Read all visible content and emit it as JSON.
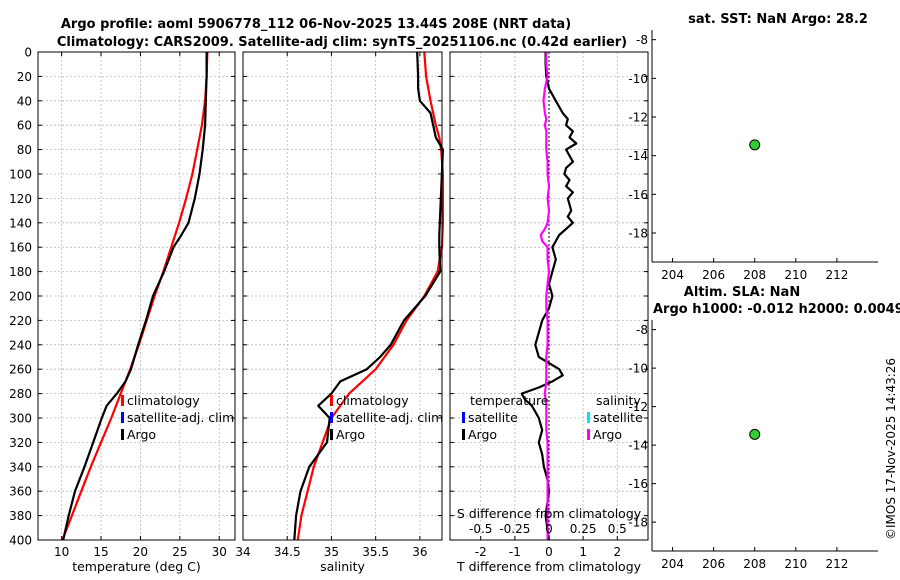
{
  "title_line1": "Argo profile: aoml 5906778_112 06-Nov-2025 13.44S 208E (NRT data)",
  "title_line2": "Climatology: CARS2009. Satellite-adj clim: synTS_20251106.nc (0.42d earlier)",
  "timestamp": "©IMOS 17-Nov-2025 14:43:26",
  "chart_data": [
    {
      "id": "temperature",
      "type": "line",
      "xlabel": "temperature (deg C)",
      "ylabel": "",
      "xlim": [
        7,
        32
      ],
      "ylim": [
        400,
        0
      ],
      "xticks": [
        10,
        15,
        20,
        25,
        30
      ],
      "xticklabels": [
        "10",
        "15",
        "20",
        "25",
        "30"
      ],
      "yticks": [
        0,
        20,
        40,
        60,
        80,
        100,
        120,
        140,
        160,
        180,
        200,
        220,
        240,
        260,
        280,
        300,
        320,
        340,
        360,
        380,
        400
      ],
      "legend": {
        "location": "lower-right",
        "entries": [
          {
            "label": "climatology",
            "color": "#ff0000"
          },
          {
            "label": "satellite-adj. clim",
            "color": "#0000ff"
          },
          {
            "label": "Argo",
            "color": "#000000"
          }
        ]
      },
      "series": [
        {
          "name": "climatology",
          "color": "#ff0000",
          "width": 2.2,
          "depth": [
            0,
            20,
            40,
            60,
            80,
            100,
            120,
            140,
            160,
            180,
            200,
            220,
            240,
            260,
            280,
            300,
            320,
            340,
            360,
            380,
            400
          ],
          "values": [
            28.5,
            28.4,
            28.2,
            27.8,
            27.2,
            26.6,
            25.8,
            24.9,
            23.9,
            22.9,
            21.8,
            20.8,
            19.8,
            18.7,
            17.5,
            16.3,
            15.0,
            13.7,
            12.5,
            11.3,
            10.1
          ]
        },
        {
          "name": "Argo",
          "color": "#000000",
          "width": 2.2,
          "depth": [
            0,
            20,
            40,
            60,
            80,
            100,
            120,
            140,
            150,
            160,
            180,
            200,
            220,
            240,
            260,
            270,
            280,
            290,
            300,
            320,
            340,
            360,
            380,
            400
          ],
          "values": [
            28.4,
            28.4,
            28.3,
            28.2,
            27.9,
            27.5,
            26.9,
            26.1,
            25.2,
            24.2,
            23.0,
            21.6,
            20.7,
            19.7,
            18.8,
            18.1,
            17.0,
            15.7,
            15.1,
            14.0,
            12.9,
            11.7,
            10.9,
            10.2
          ]
        }
      ]
    },
    {
      "id": "salinity",
      "type": "line",
      "xlabel": "salinity",
      "xlim": [
        34,
        36.25
      ],
      "ylim": [
        400,
        0
      ],
      "xticks": [
        34,
        34.5,
        35,
        35.5,
        36
      ],
      "xticklabels": [
        "34",
        "34.5",
        "35",
        "35.5",
        "36"
      ],
      "legend": {
        "location": "lower-right",
        "entries": [
          {
            "label": "climatology",
            "color": "#ff0000"
          },
          {
            "label": "satellite-adj. clim",
            "color": "#0000ff"
          },
          {
            "label": "Argo",
            "color": "#000000"
          }
        ]
      },
      "series": [
        {
          "name": "climatology",
          "color": "#ff0000",
          "width": 2.2,
          "depth": [
            0,
            20,
            40,
            60,
            70,
            80,
            100,
            120,
            140,
            160,
            180,
            200,
            220,
            240,
            260,
            280,
            300,
            320,
            340,
            360,
            380,
            400
          ],
          "values": [
            36.05,
            36.07,
            36.12,
            36.18,
            36.22,
            36.24,
            36.26,
            36.26,
            36.26,
            36.25,
            36.2,
            36.05,
            35.85,
            35.7,
            35.5,
            35.2,
            35.0,
            34.9,
            34.8,
            34.73,
            34.66,
            34.62
          ]
        },
        {
          "name": "Argo",
          "color": "#000000",
          "width": 2.2,
          "depth": [
            0,
            20,
            30,
            40,
            50,
            60,
            70,
            80,
            150,
            160,
            180,
            200,
            220,
            240,
            250,
            260,
            270,
            280,
            290,
            300,
            320,
            340,
            360,
            380,
            400
          ],
          "values": [
            35.97,
            35.98,
            35.98,
            36.0,
            36.12,
            36.15,
            36.18,
            36.26,
            36.22,
            36.22,
            36.23,
            36.06,
            35.82,
            35.67,
            35.55,
            35.4,
            35.1,
            35.0,
            34.85,
            34.98,
            34.95,
            34.75,
            34.65,
            34.6,
            34.58
          ]
        }
      ]
    },
    {
      "id": "differences",
      "type": "line",
      "xlabel": "T difference from climatology",
      "top_axis_label": "S difference from climatology",
      "xlim": [
        -2.9,
        2.9
      ],
      "top_xlim": [
        -0.725,
        0.725
      ],
      "ylim": [
        400,
        0
      ],
      "xticks": [
        -2,
        -1,
        0,
        1,
        2
      ],
      "xticklabels": [
        "-2",
        "-1",
        "0",
        "1",
        "2"
      ],
      "top_xticks": [
        -0.5,
        -0.25,
        0,
        0.25,
        0.5
      ],
      "top_xticklabels": [
        "-0.5",
        "-0.25",
        "0",
        "0.25",
        "0.5"
      ],
      "zero_line": true,
      "legend_temperature": {
        "title": "temperature",
        "entries": [
          {
            "label": "satellite",
            "color": "#0000ff"
          },
          {
            "label": "Argo",
            "color": "#000000"
          }
        ]
      },
      "legend_salinity": {
        "title": "salinity",
        "entries": [
          {
            "label": "satellite",
            "color": "#00e5ff"
          },
          {
            "label": "Argo",
            "color": "#ff00ff"
          }
        ]
      },
      "series": [
        {
          "name": "T difference (Argo)",
          "color": "#000000",
          "width": 2.2,
          "depth": [
            0,
            10,
            20,
            30,
            40,
            50,
            55,
            60,
            65,
            70,
            75,
            80,
            85,
            90,
            95,
            100,
            105,
            110,
            115,
            120,
            125,
            130,
            135,
            140,
            145,
            150,
            160,
            170,
            180,
            190,
            200,
            210,
            220,
            230,
            240,
            250,
            255,
            260,
            265,
            270,
            275,
            280,
            285,
            290,
            300,
            310,
            320,
            330,
            340,
            350,
            360,
            370,
            380,
            390,
            400
          ],
          "values": [
            -0.1,
            -0.1,
            -0.08,
            0.0,
            0.2,
            0.4,
            0.55,
            0.5,
            0.7,
            0.6,
            0.8,
            0.5,
            0.6,
            0.7,
            0.5,
            0.45,
            0.6,
            0.5,
            0.7,
            0.55,
            0.6,
            0.65,
            0.55,
            0.7,
            0.5,
            0.3,
            0.1,
            0.2,
            0.1,
            0.0,
            0.1,
            0.0,
            -0.2,
            -0.3,
            -0.4,
            -0.3,
            0.0,
            0.3,
            0.4,
            0.1,
            -0.3,
            -0.8,
            -0.7,
            -0.5,
            -0.3,
            -0.2,
            -0.3,
            -0.2,
            -0.15,
            -0.05,
            0.0,
            -0.05,
            -0.1,
            -0.05,
            0.0
          ]
        },
        {
          "name": "S difference (Argo)",
          "color": "#ff00ff",
          "width": 2.2,
          "axis": "top",
          "depth": [
            0,
            10,
            20,
            30,
            40,
            50,
            55,
            60,
            65,
            70,
            80,
            90,
            100,
            110,
            120,
            130,
            140,
            145,
            150,
            155,
            160,
            170,
            180,
            190,
            200,
            210,
            220,
            230,
            240,
            250,
            260,
            270,
            280,
            290,
            300,
            310,
            320,
            330,
            340,
            350,
            360,
            370,
            380,
            390,
            400
          ],
          "values": [
            -0.02,
            -0.02,
            -0.01,
            -0.03,
            -0.04,
            -0.03,
            -0.02,
            -0.03,
            -0.02,
            -0.02,
            -0.02,
            -0.01,
            -0.01,
            0.0,
            -0.01,
            0.0,
            -0.01,
            -0.03,
            -0.06,
            -0.05,
            -0.01,
            -0.01,
            0.0,
            -0.01,
            -0.02,
            -0.02,
            -0.01,
            -0.01,
            -0.01,
            -0.02,
            -0.02,
            -0.02,
            -0.03,
            -0.02,
            -0.02,
            -0.02,
            -0.01,
            -0.01,
            -0.01,
            -0.01,
            -0.01,
            -0.01,
            -0.01,
            -0.01,
            -0.01
          ]
        }
      ]
    },
    {
      "id": "sst-panel",
      "type": "scatter",
      "title": "sat. SST: NaN Argo: 28.2",
      "xlim": [
        203,
        214
      ],
      "ylim": [
        -19.5,
        -7.5
      ],
      "xticks": [
        204,
        206,
        208,
        210,
        212
      ],
      "xticklabels": [
        "204",
        "206",
        "208",
        "210",
        "212"
      ],
      "yticks": [
        -8,
        -10,
        -12,
        -14,
        -16,
        -18
      ],
      "yticklabels": [
        "-8",
        "-10",
        "-12",
        "-14",
        "-16",
        "-18"
      ],
      "points": [
        {
          "x": 208,
          "y": -13.44,
          "color": "#33cc33"
        }
      ]
    },
    {
      "id": "sla-panel",
      "type": "scatter",
      "title_line1": "Altim. SLA: NaN",
      "title_line2": "Argo h1000: -0.012 h2000: 0.0049",
      "xlim": [
        203,
        214
      ],
      "ylim": [
        -19.5,
        -7.5
      ],
      "xticks": [
        204,
        206,
        208,
        210,
        212
      ],
      "xticklabels": [
        "204",
        "206",
        "208",
        "210",
        "212"
      ],
      "yticks": [
        -8,
        -10,
        -12,
        -14,
        -16,
        -18
      ],
      "yticklabels": [
        "-8",
        "-10",
        "-12",
        "-14",
        "-16",
        "-18"
      ],
      "points": [
        {
          "x": 208,
          "y": -13.44,
          "color": "#33cc33"
        }
      ]
    }
  ]
}
